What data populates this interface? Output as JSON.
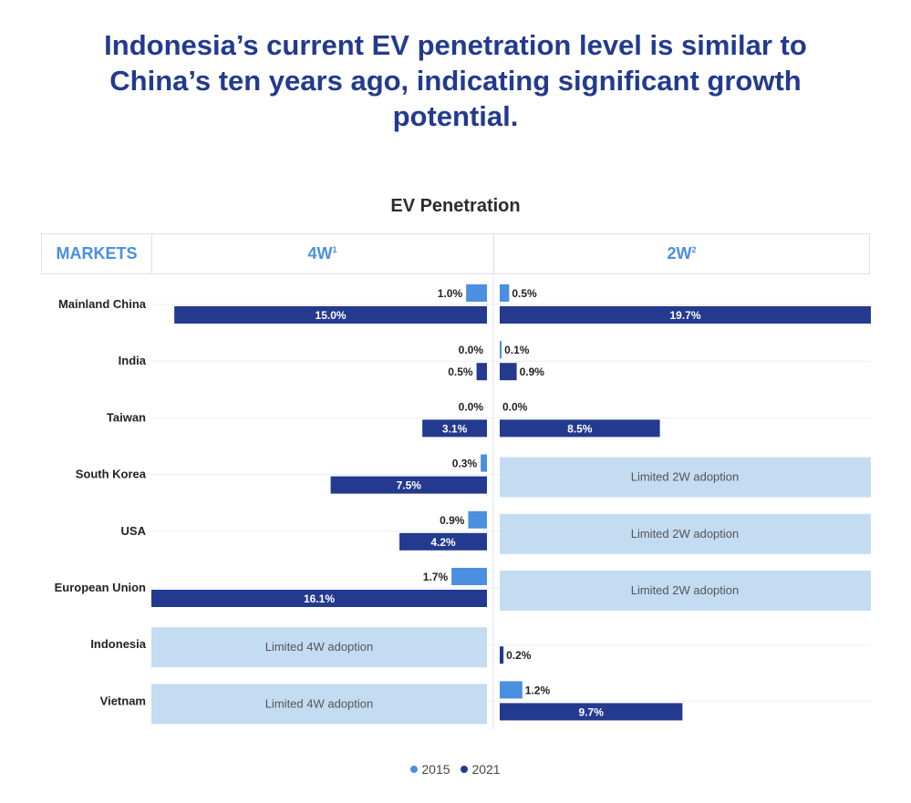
{
  "title": "Indonesia’s current EV penetration level is similar to China’s ten years ago, indicating significant growth potential.",
  "colors": {
    "title": "#233a8f",
    "bar_2015": "#4a8fe0",
    "bar_2021": "#233a8f",
    "limited_fill": "#c4dcf2",
    "header_text": "#4a8fe0"
  },
  "chart_data": {
    "type": "bar",
    "title": "EV Penetration",
    "orientation": "horizontal",
    "columns": [
      {
        "key": "4w",
        "label": "4W",
        "footnote": "1",
        "xlim": [
          0,
          16.1
        ],
        "direction": "right-to-left"
      },
      {
        "key": "2w",
        "label": "2W",
        "footnote": "2",
        "xlim": [
          0,
          19.7
        ],
        "direction": "left-to-right"
      }
    ],
    "row_header": "MARKETS",
    "series": [
      {
        "name": "2015",
        "color": "#4a8fe0"
      },
      {
        "name": "2021",
        "color": "#233a8f"
      }
    ],
    "categories": [
      "Mainland China",
      "India",
      "Taiwan",
      "South Korea",
      "USA",
      "European Union",
      "Indonesia",
      "Vietnam"
    ],
    "values_4w": [
      {
        "2015": 1.0,
        "2021": 15.0,
        "labels": [
          "1.0%",
          "15.0%"
        ]
      },
      {
        "2015": 0.0,
        "2021": 0.5,
        "labels": [
          "0.0%",
          "0.5%"
        ]
      },
      {
        "2015": 0.0,
        "2021": 3.1,
        "labels": [
          "0.0%",
          "3.1%"
        ]
      },
      {
        "2015": 0.3,
        "2021": 7.5,
        "labels": [
          "0.3%",
          "7.5%"
        ]
      },
      {
        "2015": 0.9,
        "2021": 4.2,
        "labels": [
          "0.9%",
          "4.2%"
        ]
      },
      {
        "2015": 1.7,
        "2021": 16.1,
        "labels": [
          "1.7%",
          "16.1%"
        ]
      },
      {
        "limited": "Limited 4W adoption"
      },
      {
        "limited": "Limited 4W adoption"
      }
    ],
    "values_2w": [
      {
        "2015": 0.5,
        "2021": 19.7,
        "labels": [
          "0.5%",
          "19.7%"
        ]
      },
      {
        "2015": 0.1,
        "2021": 0.9,
        "labels": [
          "0.1%",
          "0.9%"
        ]
      },
      {
        "2015": 0.0,
        "2021": 8.5,
        "labels": [
          "0.0%",
          "8.5%"
        ]
      },
      {
        "limited": "Limited 2W adoption"
      },
      {
        "limited": "Limited 2W adoption"
      },
      {
        "limited": "Limited 2W adoption"
      },
      {
        "2015": null,
        "2021": 0.2,
        "labels": [
          "",
          "0.2%"
        ]
      },
      {
        "2015": 1.2,
        "2021": 9.7,
        "labels": [
          "1.2%",
          "9.7%"
        ]
      }
    ]
  }
}
